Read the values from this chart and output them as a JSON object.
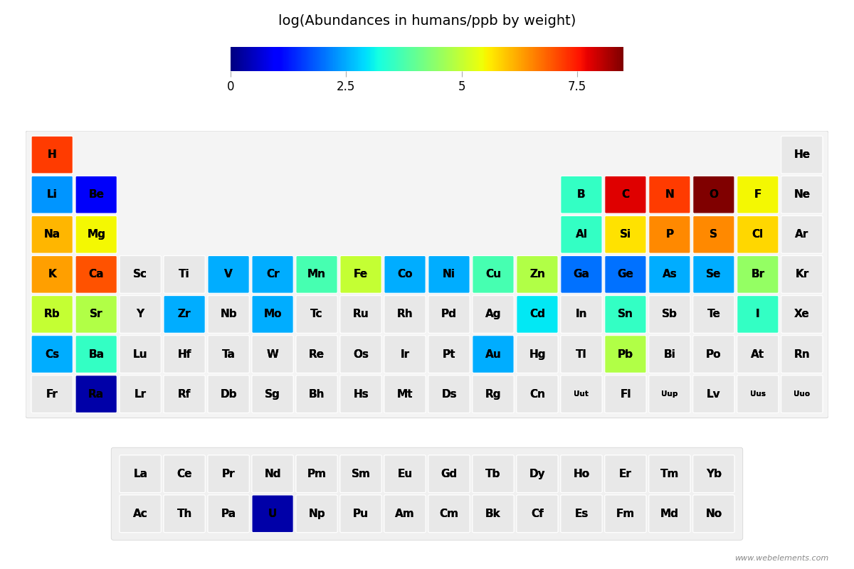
{
  "title": "log(Abundances in humans/ppb by weight)",
  "colorbar_ticks": [
    0,
    2.5,
    5,
    7.5
  ],
  "colorbar_tick_labels": [
    "0",
    "2.5",
    "5",
    "7.5"
  ],
  "vmin": -1.0,
  "vmax": 9.0,
  "colorbar_vmin": 0,
  "colorbar_vmax": 8.5,
  "background_color": "#ffffff",
  "no_data_color": "#e8e8e8",
  "elements": [
    {
      "symbol": "H",
      "row": 1,
      "col": 1,
      "value": 7.2
    },
    {
      "symbol": "He",
      "row": 1,
      "col": 18,
      "value": null
    },
    {
      "symbol": "Li",
      "row": 2,
      "col": 1,
      "value": 2.3
    },
    {
      "symbol": "Be",
      "row": 2,
      "col": 2,
      "value": 0.9
    },
    {
      "symbol": "B",
      "row": 2,
      "col": 13,
      "value": 3.5
    },
    {
      "symbol": "C",
      "row": 2,
      "col": 14,
      "value": 7.8
    },
    {
      "symbol": "N",
      "row": 2,
      "col": 15,
      "value": 7.2
    },
    {
      "symbol": "O",
      "row": 2,
      "col": 16,
      "value": 8.5
    },
    {
      "symbol": "F",
      "row": 2,
      "col": 17,
      "value": 5.5
    },
    {
      "symbol": "Ne",
      "row": 2,
      "col": 18,
      "value": null
    },
    {
      "symbol": "Na",
      "row": 3,
      "col": 1,
      "value": 6.1
    },
    {
      "symbol": "Mg",
      "row": 3,
      "col": 2,
      "value": 5.5
    },
    {
      "symbol": "Al",
      "row": 3,
      "col": 13,
      "value": 3.5
    },
    {
      "symbol": "Si",
      "row": 3,
      "col": 14,
      "value": 5.7
    },
    {
      "symbol": "P",
      "row": 3,
      "col": 15,
      "value": 6.5
    },
    {
      "symbol": "S",
      "row": 3,
      "col": 16,
      "value": 6.5
    },
    {
      "symbol": "Cl",
      "row": 3,
      "col": 17,
      "value": 5.8
    },
    {
      "symbol": "Ar",
      "row": 3,
      "col": 18,
      "value": null
    },
    {
      "symbol": "K",
      "row": 4,
      "col": 1,
      "value": 6.3
    },
    {
      "symbol": "Ca",
      "row": 4,
      "col": 2,
      "value": 7.0
    },
    {
      "symbol": "Sc",
      "row": 4,
      "col": 3,
      "value": null
    },
    {
      "symbol": "Ti",
      "row": 4,
      "col": 4,
      "value": null
    },
    {
      "symbol": "V",
      "row": 4,
      "col": 5,
      "value": 2.5
    },
    {
      "symbol": "Cr",
      "row": 4,
      "col": 6,
      "value": 2.5
    },
    {
      "symbol": "Mn",
      "row": 4,
      "col": 7,
      "value": 3.7
    },
    {
      "symbol": "Fe",
      "row": 4,
      "col": 8,
      "value": 5.0
    },
    {
      "symbol": "Co",
      "row": 4,
      "col": 9,
      "value": 2.5
    },
    {
      "symbol": "Ni",
      "row": 4,
      "col": 10,
      "value": 2.5
    },
    {
      "symbol": "Cu",
      "row": 4,
      "col": 11,
      "value": 3.7
    },
    {
      "symbol": "Zn",
      "row": 4,
      "col": 12,
      "value": 4.8
    },
    {
      "symbol": "Ga",
      "row": 4,
      "col": 13,
      "value": 2.0
    },
    {
      "symbol": "Ge",
      "row": 4,
      "col": 14,
      "value": 2.0
    },
    {
      "symbol": "As",
      "row": 4,
      "col": 15,
      "value": 2.5
    },
    {
      "symbol": "Se",
      "row": 4,
      "col": 16,
      "value": 2.5
    },
    {
      "symbol": "Br",
      "row": 4,
      "col": 17,
      "value": 4.5
    },
    {
      "symbol": "Kr",
      "row": 4,
      "col": 18,
      "value": null
    },
    {
      "symbol": "Rb",
      "row": 5,
      "col": 1,
      "value": 5.0
    },
    {
      "symbol": "Sr",
      "row": 5,
      "col": 2,
      "value": 4.8
    },
    {
      "symbol": "Y",
      "row": 5,
      "col": 3,
      "value": null
    },
    {
      "symbol": "Zr",
      "row": 5,
      "col": 4,
      "value": 2.5
    },
    {
      "symbol": "Nb",
      "row": 5,
      "col": 5,
      "value": null
    },
    {
      "symbol": "Mo",
      "row": 5,
      "col": 6,
      "value": 2.5
    },
    {
      "symbol": "Tc",
      "row": 5,
      "col": 7,
      "value": null
    },
    {
      "symbol": "Ru",
      "row": 5,
      "col": 8,
      "value": null
    },
    {
      "symbol": "Rh",
      "row": 5,
      "col": 9,
      "value": null
    },
    {
      "symbol": "Pd",
      "row": 5,
      "col": 10,
      "value": null
    },
    {
      "symbol": "Ag",
      "row": 5,
      "col": 11,
      "value": null
    },
    {
      "symbol": "Cd",
      "row": 5,
      "col": 12,
      "value": 3.0
    },
    {
      "symbol": "In",
      "row": 5,
      "col": 13,
      "value": null
    },
    {
      "symbol": "Sn",
      "row": 5,
      "col": 14,
      "value": 3.5
    },
    {
      "symbol": "Sb",
      "row": 5,
      "col": 15,
      "value": null
    },
    {
      "symbol": "Te",
      "row": 5,
      "col": 16,
      "value": null
    },
    {
      "symbol": "I",
      "row": 5,
      "col": 17,
      "value": 3.5
    },
    {
      "symbol": "Xe",
      "row": 5,
      "col": 18,
      "value": null
    },
    {
      "symbol": "Cs",
      "row": 6,
      "col": 1,
      "value": 2.5
    },
    {
      "symbol": "Ba",
      "row": 6,
      "col": 2,
      "value": 3.5
    },
    {
      "symbol": "Lu",
      "row": 6,
      "col": 3,
      "value": null
    },
    {
      "symbol": "Hf",
      "row": 6,
      "col": 4,
      "value": null
    },
    {
      "symbol": "Ta",
      "row": 6,
      "col": 5,
      "value": null
    },
    {
      "symbol": "W",
      "row": 6,
      "col": 6,
      "value": null
    },
    {
      "symbol": "Re",
      "row": 6,
      "col": 7,
      "value": null
    },
    {
      "symbol": "Os",
      "row": 6,
      "col": 8,
      "value": null
    },
    {
      "symbol": "Ir",
      "row": 6,
      "col": 9,
      "value": null
    },
    {
      "symbol": "Pt",
      "row": 6,
      "col": 10,
      "value": null
    },
    {
      "symbol": "Au",
      "row": 6,
      "col": 11,
      "value": 2.5
    },
    {
      "symbol": "Hg",
      "row": 6,
      "col": 12,
      "value": null
    },
    {
      "symbol": "Tl",
      "row": 6,
      "col": 13,
      "value": null
    },
    {
      "symbol": "Pb",
      "row": 6,
      "col": 14,
      "value": 4.8
    },
    {
      "symbol": "Bi",
      "row": 6,
      "col": 15,
      "value": null
    },
    {
      "symbol": "Po",
      "row": 6,
      "col": 16,
      "value": null
    },
    {
      "symbol": "At",
      "row": 6,
      "col": 17,
      "value": null
    },
    {
      "symbol": "Rn",
      "row": 6,
      "col": 18,
      "value": null
    },
    {
      "symbol": "Fr",
      "row": 7,
      "col": 1,
      "value": null
    },
    {
      "symbol": "Ra",
      "row": 7,
      "col": 2,
      "value": 0.3
    },
    {
      "symbol": "Lr",
      "row": 7,
      "col": 3,
      "value": null
    },
    {
      "symbol": "Rf",
      "row": 7,
      "col": 4,
      "value": null
    },
    {
      "symbol": "Db",
      "row": 7,
      "col": 5,
      "value": null
    },
    {
      "symbol": "Sg",
      "row": 7,
      "col": 6,
      "value": null
    },
    {
      "symbol": "Bh",
      "row": 7,
      "col": 7,
      "value": null
    },
    {
      "symbol": "Hs",
      "row": 7,
      "col": 8,
      "value": null
    },
    {
      "symbol": "Mt",
      "row": 7,
      "col": 9,
      "value": null
    },
    {
      "symbol": "Ds",
      "row": 7,
      "col": 10,
      "value": null
    },
    {
      "symbol": "Rg",
      "row": 7,
      "col": 11,
      "value": null
    },
    {
      "symbol": "Cn",
      "row": 7,
      "col": 12,
      "value": null
    },
    {
      "symbol": "Uut",
      "row": 7,
      "col": 13,
      "value": null
    },
    {
      "symbol": "Fl",
      "row": 7,
      "col": 14,
      "value": null
    },
    {
      "symbol": "Uup",
      "row": 7,
      "col": 15,
      "value": null
    },
    {
      "symbol": "Lv",
      "row": 7,
      "col": 16,
      "value": null
    },
    {
      "symbol": "Uus",
      "row": 7,
      "col": 17,
      "value": null
    },
    {
      "symbol": "Uuo",
      "row": 7,
      "col": 18,
      "value": null
    },
    {
      "symbol": "La",
      "row": 9,
      "col": 3,
      "value": null
    },
    {
      "symbol": "Ce",
      "row": 9,
      "col": 4,
      "value": null
    },
    {
      "symbol": "Pr",
      "row": 9,
      "col": 5,
      "value": null
    },
    {
      "symbol": "Nd",
      "row": 9,
      "col": 6,
      "value": null
    },
    {
      "symbol": "Pm",
      "row": 9,
      "col": 7,
      "value": null
    },
    {
      "symbol": "Sm",
      "row": 9,
      "col": 8,
      "value": null
    },
    {
      "symbol": "Eu",
      "row": 9,
      "col": 9,
      "value": null
    },
    {
      "symbol": "Gd",
      "row": 9,
      "col": 10,
      "value": null
    },
    {
      "symbol": "Tb",
      "row": 9,
      "col": 11,
      "value": null
    },
    {
      "symbol": "Dy",
      "row": 9,
      "col": 12,
      "value": null
    },
    {
      "symbol": "Ho",
      "row": 9,
      "col": 13,
      "value": null
    },
    {
      "symbol": "Er",
      "row": 9,
      "col": 14,
      "value": null
    },
    {
      "symbol": "Tm",
      "row": 9,
      "col": 15,
      "value": null
    },
    {
      "symbol": "Yb",
      "row": 9,
      "col": 16,
      "value": null
    },
    {
      "symbol": "Ac",
      "row": 10,
      "col": 3,
      "value": null
    },
    {
      "symbol": "Th",
      "row": 10,
      "col": 4,
      "value": null
    },
    {
      "symbol": "Pa",
      "row": 10,
      "col": 5,
      "value": null
    },
    {
      "symbol": "U",
      "row": 10,
      "col": 6,
      "value": 0.3
    },
    {
      "symbol": "Np",
      "row": 10,
      "col": 7,
      "value": null
    },
    {
      "symbol": "Pu",
      "row": 10,
      "col": 8,
      "value": null
    },
    {
      "symbol": "Am",
      "row": 10,
      "col": 9,
      "value": null
    },
    {
      "symbol": "Cm",
      "row": 10,
      "col": 10,
      "value": null
    },
    {
      "symbol": "Bk",
      "row": 10,
      "col": 11,
      "value": null
    },
    {
      "symbol": "Cf",
      "row": 10,
      "col": 12,
      "value": null
    },
    {
      "symbol": "Es",
      "row": 10,
      "col": 13,
      "value": null
    },
    {
      "symbol": "Fm",
      "row": 10,
      "col": 14,
      "value": null
    },
    {
      "symbol": "Md",
      "row": 10,
      "col": 15,
      "value": null
    },
    {
      "symbol": "No",
      "row": 10,
      "col": 16,
      "value": null
    }
  ],
  "watermark": "www.webelements.com"
}
